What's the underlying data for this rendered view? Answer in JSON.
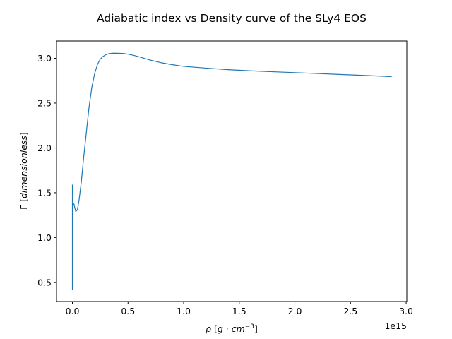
{
  "chart_data": {
    "type": "line",
    "title": "Adiabatic index vs Density curve of the SLy4 EOS",
    "xlabel_parts": [
      "ρ",
      " [",
      "g",
      " · ",
      "cm",
      "−3",
      "]"
    ],
    "ylabel_parts": [
      "Γ",
      " [",
      "dimensionless",
      "]"
    ],
    "x_offset_text": "1e15",
    "x_scale": 1000000000000000.0,
    "xlim": [
      -0.143,
      3.006
    ],
    "ylim": [
      0.286,
      3.193
    ],
    "x_ticks": [
      0.0,
      0.5,
      1.0,
      1.5,
      2.0,
      2.5,
      3.0
    ],
    "x_tick_labels": [
      "0.0",
      "0.5",
      "1.0",
      "1.5",
      "2.0",
      "2.5",
      "3.0"
    ],
    "y_ticks": [
      0.5,
      1.0,
      1.5,
      2.0,
      2.5,
      3.0
    ],
    "y_tick_labels": [
      "0.5",
      "1.0",
      "1.5",
      "2.0",
      "2.5",
      "3.0"
    ],
    "grid": false,
    "colors": {
      "series": "#1f77b4"
    },
    "series": [
      {
        "x": [
          0.0,
          0.0,
          0.0,
          0.001,
          0.002,
          0.004,
          0.007,
          0.01,
          0.015,
          0.02,
          0.03,
          0.045,
          0.06,
          0.08,
          0.1,
          0.125,
          0.15,
          0.175,
          0.2,
          0.225,
          0.25,
          0.275,
          0.3,
          0.325,
          0.35,
          0.375,
          0.4,
          0.43,
          0.46,
          0.5,
          0.55,
          0.6,
          0.7,
          0.8,
          0.9,
          1.0,
          1.2,
          1.4,
          1.6,
          1.8,
          2.0,
          2.2,
          2.4,
          2.6,
          2.87
        ],
        "y": [
          1.59,
          0.42,
          1.33,
          1.1,
          1.25,
          1.35,
          1.37,
          1.38,
          1.37,
          1.34,
          1.29,
          1.31,
          1.42,
          1.62,
          1.88,
          2.17,
          2.46,
          2.68,
          2.83,
          2.93,
          2.99,
          3.02,
          3.04,
          3.05,
          3.055,
          3.057,
          3.056,
          3.055,
          3.053,
          3.046,
          3.033,
          3.016,
          2.98,
          2.95,
          2.928,
          2.91,
          2.89,
          2.873,
          2.86,
          2.85,
          2.84,
          2.83,
          2.82,
          2.81,
          2.795
        ]
      }
    ]
  }
}
